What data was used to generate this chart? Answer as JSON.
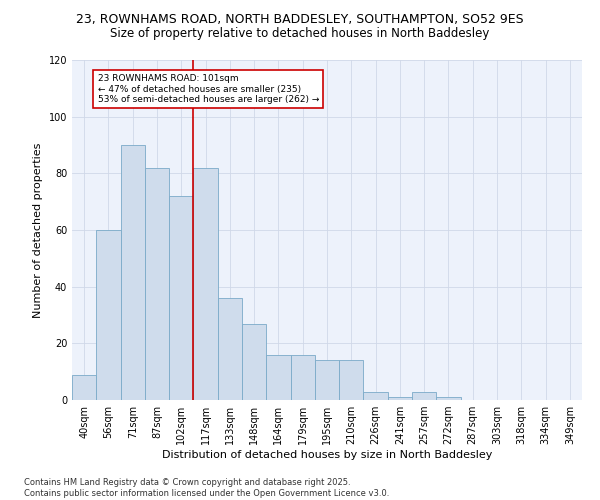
{
  "title_line1": "23, ROWNHAMS ROAD, NORTH BADDESLEY, SOUTHAMPTON, SO52 9ES",
  "title_line2": "Size of property relative to detached houses in North Baddesley",
  "xlabel": "Distribution of detached houses by size in North Baddesley",
  "ylabel": "Number of detached properties",
  "categories": [
    "40sqm",
    "56sqm",
    "71sqm",
    "87sqm",
    "102sqm",
    "117sqm",
    "133sqm",
    "148sqm",
    "164sqm",
    "179sqm",
    "195sqm",
    "210sqm",
    "226sqm",
    "241sqm",
    "257sqm",
    "272sqm",
    "287sqm",
    "303sqm",
    "318sqm",
    "334sqm",
    "349sqm"
  ],
  "values": [
    9,
    60,
    90,
    82,
    72,
    82,
    36,
    27,
    16,
    16,
    14,
    14,
    3,
    1,
    3,
    1,
    0,
    0,
    0,
    0,
    0
  ],
  "bar_color": "#cfdcec",
  "bar_edge_color": "#7aaac8",
  "grid_color": "#d0d8e8",
  "bg_color": "#edf2fb",
  "vline_x_pos": 4.5,
  "vline_color": "#cc0000",
  "annotation_text": "23 ROWNHAMS ROAD: 101sqm\n← 47% of detached houses are smaller (235)\n53% of semi-detached houses are larger (262) →",
  "annotation_box_color": "#cc0000",
  "ylim": [
    0,
    120
  ],
  "yticks": [
    0,
    20,
    40,
    60,
    80,
    100,
    120
  ],
  "footer_line1": "Contains HM Land Registry data © Crown copyright and database right 2025.",
  "footer_line2": "Contains public sector information licensed under the Open Government Licence v3.0.",
  "title_fontsize": 9,
  "subtitle_fontsize": 8.5,
  "axis_label_fontsize": 8,
  "tick_fontsize": 7,
  "footer_fontsize": 6
}
